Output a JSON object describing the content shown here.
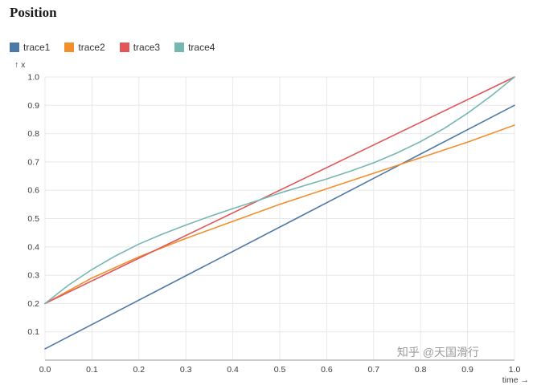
{
  "title": "Position",
  "axes": {
    "y_caption": "↑ x",
    "x_caption": "time →"
  },
  "watermark": "知乎 @天国滑行",
  "colors": {
    "grid": "#e8e8e8",
    "axis_line": "#999999",
    "tick_text": "#3b3b3b",
    "caption_text": "#444444",
    "watermark": "#9b9b9b"
  },
  "chart_data": {
    "type": "line",
    "title": "Position",
    "xlabel": "time",
    "ylabel": "x",
    "xlim": [
      0,
      1
    ],
    "ylim": [
      0,
      1
    ],
    "grid": true,
    "legend_position": "top-left",
    "x_ticks": {
      "values": [
        0,
        0.1,
        0.2,
        0.3,
        0.4,
        0.5,
        0.6,
        0.7,
        0.8,
        0.9,
        1.0
      ],
      "labels": [
        "0.0",
        "0.1",
        "0.2",
        "0.3",
        "0.4",
        "0.5",
        "0.6",
        "0.7",
        "0.8",
        "0.9",
        "1.0"
      ]
    },
    "y_ticks": {
      "values": [
        0.1,
        0.2,
        0.3,
        0.4,
        0.5,
        0.6,
        0.7,
        0.8,
        0.9,
        1.0
      ],
      "labels": [
        "0.1",
        "0.2",
        "0.3",
        "0.4",
        "0.5",
        "0.6",
        "0.7",
        "0.8",
        "0.9",
        "1.0"
      ]
    },
    "series": [
      {
        "name": "trace1",
        "color": "#4e79a7",
        "x": [
          0,
          1
        ],
        "y": [
          0.04,
          0.9
        ]
      },
      {
        "name": "trace2",
        "color": "#f28e2b",
        "x": [
          0,
          0.1,
          0.2,
          0.3,
          0.4,
          0.5,
          0.6,
          0.7,
          0.8,
          0.9,
          1.0
        ],
        "y": [
          0.2,
          0.29,
          0.365,
          0.43,
          0.49,
          0.55,
          0.605,
          0.66,
          0.715,
          0.77,
          0.83
        ]
      },
      {
        "name": "trace3",
        "color": "#e15759",
        "x": [
          0,
          1
        ],
        "y": [
          0.2,
          1.0
        ]
      },
      {
        "name": "trace4",
        "color": "#76b7b2",
        "x": [
          0,
          0.05,
          0.1,
          0.15,
          0.2,
          0.25,
          0.3,
          0.35,
          0.4,
          0.45,
          0.5,
          0.55,
          0.6,
          0.65,
          0.7,
          0.75,
          0.8,
          0.85,
          0.9,
          0.95,
          1.0
        ],
        "y": [
          0.2,
          0.265,
          0.32,
          0.368,
          0.41,
          0.445,
          0.477,
          0.507,
          0.535,
          0.562,
          0.59,
          0.615,
          0.64,
          0.667,
          0.697,
          0.732,
          0.772,
          0.818,
          0.872,
          0.933,
          1.0
        ]
      }
    ]
  }
}
